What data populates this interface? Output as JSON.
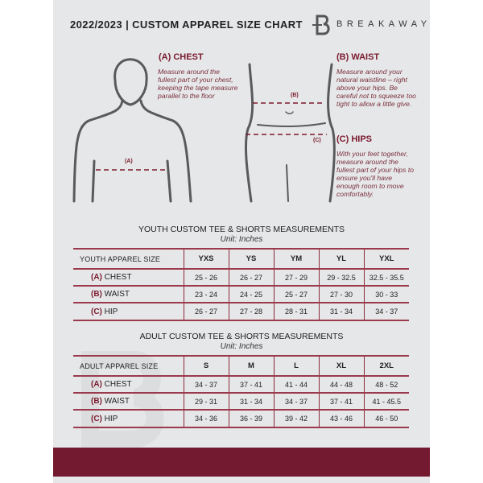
{
  "header": {
    "title": "2022/2023  |  CUSTOM APPAREL SIZE CHART",
    "brand": "BREAKAWAY"
  },
  "guide": {
    "chest": {
      "title": "(A) CHEST",
      "text": "Measure around the fullest part of your chest, keeping the tape measure parallel to the floor",
      "marker": "(A)"
    },
    "waist": {
      "title": "(B) WAIST",
      "text": "Measure around your natural waistline – right above your hips. Be careful not to squeeze too tight to allow a little give.",
      "marker": "(B)"
    },
    "hips": {
      "title": "(C) HIPS",
      "text": "With your feet together, measure around the fullest part of your hips to ensure you'll have enough room to move comfortably.",
      "marker": "(C)"
    }
  },
  "colors": {
    "accent": "#731a30",
    "background": "#e6e7e8"
  },
  "youth": {
    "title": "YOUTH CUSTOM TEE & SHORTS MEASUREMENTS",
    "unit": "Unit: Inches",
    "header": [
      "YOUTH APPAREL SIZE",
      "YXS",
      "YS",
      "YM",
      "YL",
      "YXL"
    ],
    "rows": [
      {
        "letter": "(A)",
        "name": "CHEST",
        "values": [
          "25 - 26",
          "26 - 27",
          "27 - 29",
          "29 - 32.5",
          "32.5 - 35.5"
        ]
      },
      {
        "letter": "(B)",
        "name": "WAIST",
        "values": [
          "23 - 24",
          "24 - 25",
          "25 - 27",
          "27 - 30",
          "30 - 33"
        ]
      },
      {
        "letter": "(C)",
        "name": "HIP",
        "values": [
          "26 - 27",
          "27 - 28",
          "28 - 31",
          "31 - 34",
          "34 - 37"
        ]
      }
    ]
  },
  "adult": {
    "title": "ADULT CUSTOM TEE & SHORTS MEASUREMENTS",
    "unit": "Unit: Inches",
    "header": [
      "ADULT APPAREL SIZE",
      "S",
      "M",
      "L",
      "XL",
      "2XL"
    ],
    "rows": [
      {
        "letter": "(A)",
        "name": "CHEST",
        "values": [
          "34 - 37",
          "37 - 41",
          "41 - 44",
          "44 - 48",
          "48 - 52"
        ]
      },
      {
        "letter": "(B)",
        "name": "WAIST",
        "values": [
          "29 - 31",
          "31 - 34",
          "34 - 37",
          "37 - 41",
          "41 - 45.5"
        ]
      },
      {
        "letter": "(C)",
        "name": "HIP",
        "values": [
          "34 - 36",
          "36 - 39",
          "39 - 42",
          "43 - 46",
          "46 - 50"
        ]
      }
    ]
  }
}
